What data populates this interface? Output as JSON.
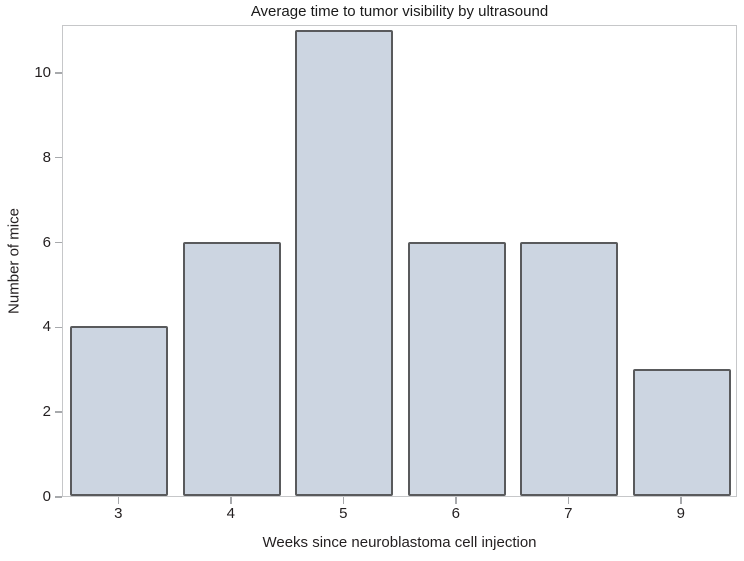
{
  "chart_data": {
    "type": "bar",
    "title": "Average time to tumor visibility by ultrasound",
    "xlabel": "Weeks since neuroblastoma cell injection",
    "ylabel": "Number of mice",
    "categories": [
      "3",
      "4",
      "5",
      "6",
      "7",
      "9"
    ],
    "values": [
      4,
      6,
      11,
      6,
      6,
      3
    ],
    "yticks": [
      0,
      2,
      4,
      6,
      8,
      10
    ],
    "ylim": [
      0,
      11.13
    ],
    "grid": false,
    "legend": "none",
    "bar_fill_color": "#ccd5e1",
    "bar_border_color": "#595a5c",
    "frame_color": "#c6c7c9",
    "tick_color": "#a7a9ac",
    "text_color": "#231f20"
  }
}
